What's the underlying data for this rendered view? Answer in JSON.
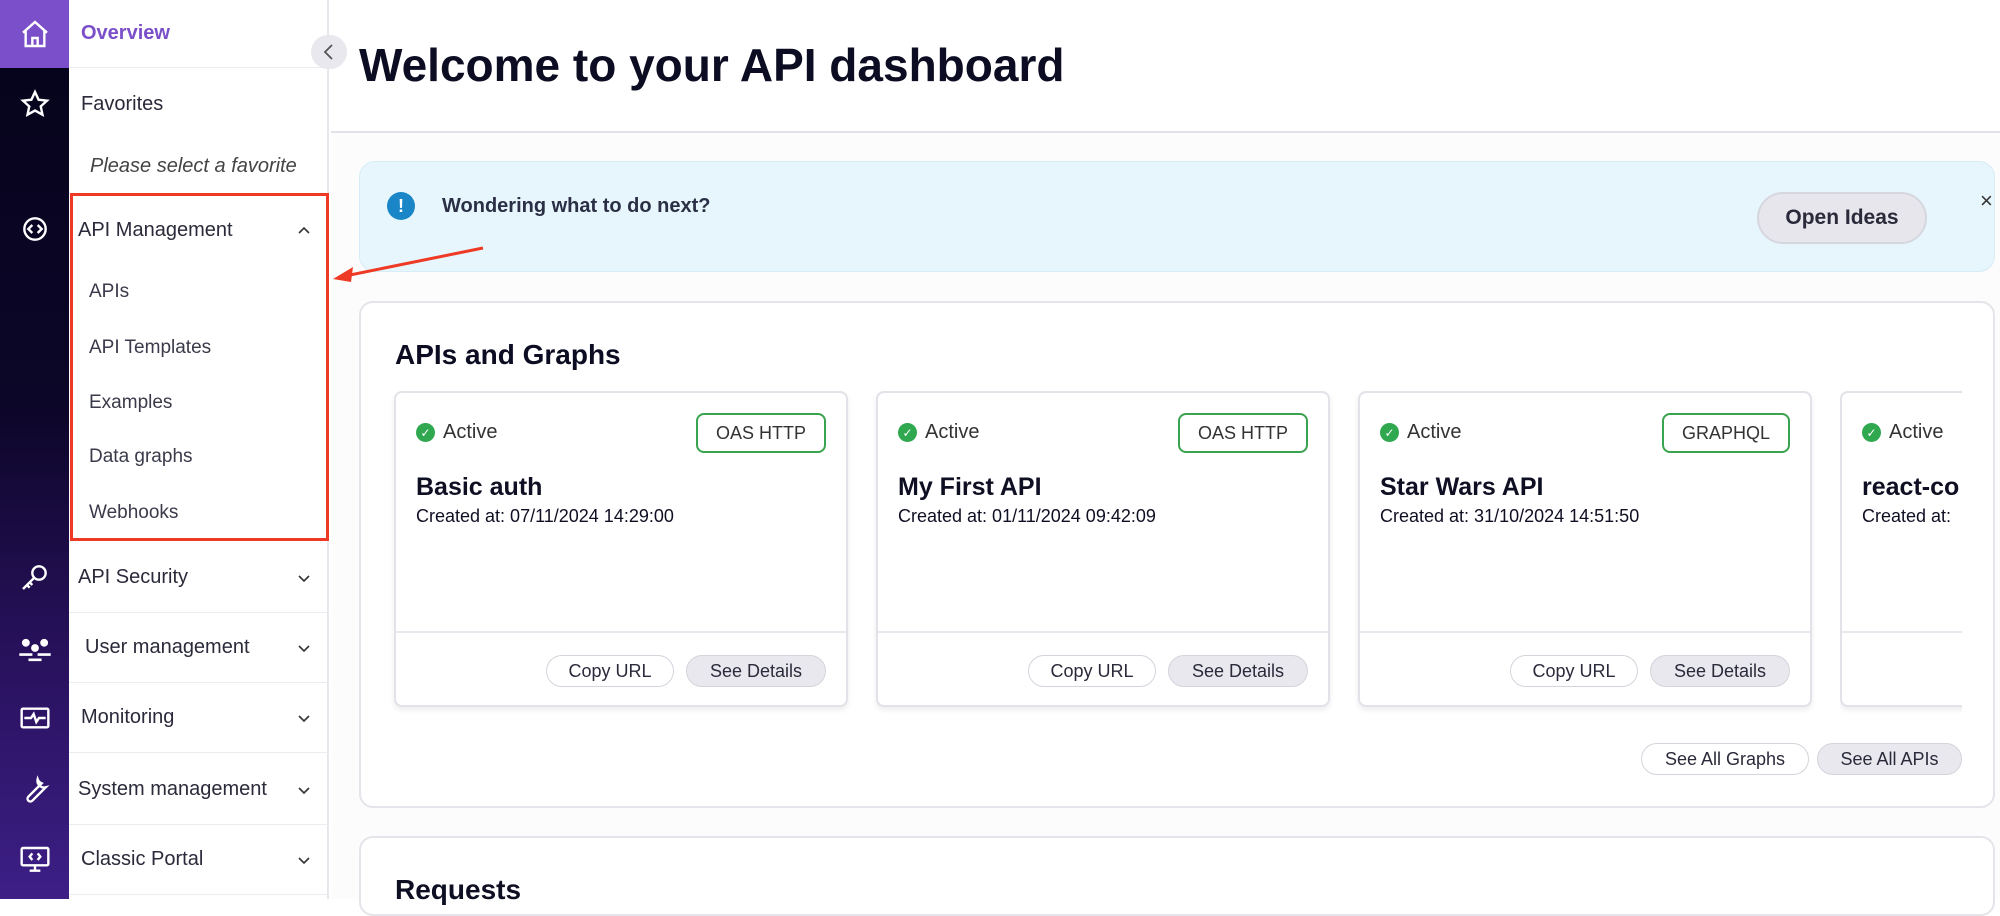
{
  "rail": {
    "icons": [
      "home-icon",
      "star-icon",
      "api-gear-icon",
      "key-icon",
      "users-icon",
      "monitor-pulse-icon",
      "wrench-icon",
      "code-screen-icon"
    ]
  },
  "sidebar": {
    "overview": "Overview",
    "favorites": "Favorites",
    "favorites_empty": "Please select a favorite",
    "api_management": {
      "label": "API Management",
      "expanded": true,
      "items": [
        "APIs",
        "API Templates",
        "Examples",
        "Data graphs",
        "Webhooks"
      ]
    },
    "groups": [
      "API Security",
      "User management",
      "Monitoring",
      "System management",
      "Classic Portal"
    ]
  },
  "header": {
    "title": "Welcome to your API dashboard"
  },
  "banner": {
    "text": "Wondering what to do next?",
    "button": "Open Ideas",
    "close": "×"
  },
  "apis": {
    "title": "APIs and Graphs",
    "cards": [
      {
        "status": "Active",
        "type": "OAS HTTP",
        "name": "Basic auth",
        "created": "Created at: 07/11/2024 14:29:00",
        "copy": "Copy URL",
        "details": "See Details"
      },
      {
        "status": "Active",
        "type": "OAS HTTP",
        "name": "My First API",
        "created": "Created at: 01/11/2024 09:42:09",
        "copy": "Copy URL",
        "details": "See Details"
      },
      {
        "status": "Active",
        "type": "GRAPHQL",
        "name": "Star Wars API",
        "created": "Created at: 31/10/2024 14:51:50",
        "copy": "Copy URL",
        "details": "See Details"
      },
      {
        "status": "Active",
        "name": "react-co",
        "created": "Created at:"
      }
    ],
    "see_all_graphs": "See All Graphs",
    "see_all_apis": "See All APIs"
  },
  "requests": {
    "title": "Requests"
  },
  "colors": {
    "accent": "#7b4fc9",
    "highlight": "#ee3a24",
    "active": "#2fa84f",
    "banner_bg": "#e7f6fc"
  }
}
